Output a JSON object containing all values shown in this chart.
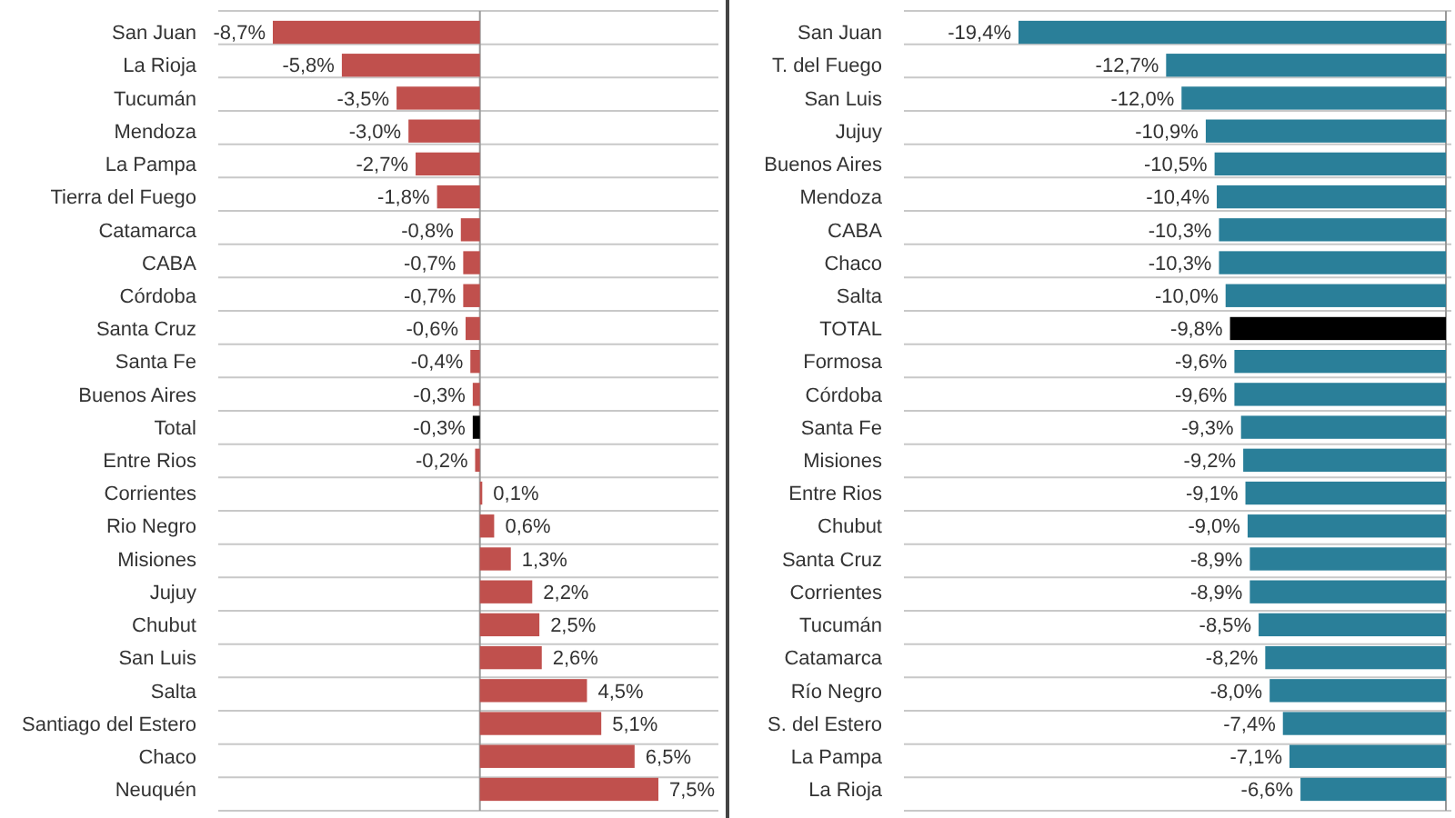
{
  "chart_data": [
    {
      "type": "bar",
      "orientation": "horizontal",
      "grid": "y",
      "categories": [
        "San Juan",
        "La Rioja",
        "Tucumán",
        "Mendoza",
        "La Pampa",
        "Tierra del Fuego",
        "Catamarca",
        "CABA",
        "Córdoba",
        "Santa Cruz",
        "Santa Fe",
        "Buenos Aires",
        "Total",
        "Entre Rios",
        "Corrientes",
        "Rio Negro",
        "Misiones",
        "Jujuy",
        "Chubut",
        "San Luis",
        "Salta",
        "Santiago del Estero",
        "Chaco",
        "Neuquén"
      ],
      "values": [
        -8.7,
        -5.8,
        -3.5,
        -3.0,
        -2.7,
        -1.8,
        -0.8,
        -0.7,
        -0.7,
        -0.6,
        -0.4,
        -0.3,
        -0.3,
        -0.2,
        0.1,
        0.6,
        1.3,
        2.2,
        2.5,
        2.6,
        4.5,
        5.1,
        6.5,
        7.5
      ],
      "colors": [
        "#c0504d",
        "#c0504d",
        "#c0504d",
        "#c0504d",
        "#c0504d",
        "#c0504d",
        "#c0504d",
        "#c0504d",
        "#c0504d",
        "#c0504d",
        "#c0504d",
        "#c0504d",
        "#000000",
        "#c0504d",
        "#c0504d",
        "#c0504d",
        "#c0504d",
        "#c0504d",
        "#c0504d",
        "#c0504d",
        "#c0504d",
        "#c0504d",
        "#c0504d",
        "#c0504d"
      ],
      "value_labels": [
        "-8,7%",
        "-5,8%",
        "-3,5%",
        "-3,0%",
        "-2,7%",
        "-1,8%",
        "-0,8%",
        "-0,7%",
        "-0,7%",
        "-0,6%",
        "-0,4%",
        "-0,3%",
        "-0,3%",
        "-0,2%",
        "0,1%",
        "0,6%",
        "1,3%",
        "2,2%",
        "2,5%",
        "2,6%",
        "4,5%",
        "5,1%",
        "6,5%",
        "7,5%"
      ]
    },
    {
      "type": "bar",
      "orientation": "horizontal",
      "grid": "y",
      "categories": [
        "San Juan",
        "T. del Fuego",
        "San Luis",
        "Jujuy",
        "Buenos Aires",
        "Mendoza",
        "CABA",
        "Chaco",
        "Salta",
        "TOTAL",
        "Formosa",
        "Córdoba",
        "Santa Fe",
        "Misiones",
        "Entre Rios",
        "Chubut",
        "Santa Cruz",
        "Corrientes",
        "Tucumán",
        "Catamarca",
        "Río Negro",
        "S. del Estero",
        "La Pampa",
        "La Rioja"
      ],
      "values": [
        -19.4,
        -12.7,
        -12.0,
        -10.9,
        -10.5,
        -10.4,
        -10.3,
        -10.3,
        -10.0,
        -9.8,
        -9.6,
        -9.6,
        -9.3,
        -9.2,
        -9.1,
        -9.0,
        -8.9,
        -8.9,
        -8.5,
        -8.2,
        -8.0,
        -7.4,
        -7.1,
        -6.6
      ],
      "colors": [
        "#2a7f99",
        "#2a7f99",
        "#2a7f99",
        "#2a7f99",
        "#2a7f99",
        "#2a7f99",
        "#2a7f99",
        "#2a7f99",
        "#2a7f99",
        "#000000",
        "#2a7f99",
        "#2a7f99",
        "#2a7f99",
        "#2a7f99",
        "#2a7f99",
        "#2a7f99",
        "#2a7f99",
        "#2a7f99",
        "#2a7f99",
        "#2a7f99",
        "#2a7f99",
        "#2a7f99",
        "#2a7f99",
        "#2a7f99"
      ],
      "value_labels": [
        "-19,4%",
        "-12,7%",
        "-12,0%",
        "-10,9%",
        "-10,5%",
        "-10,4%",
        "-10,3%",
        "-10,3%",
        "-10,0%",
        "-9,8%",
        "-9,6%",
        "-9,6%",
        "-9,3%",
        "-9,2%",
        "-9,1%",
        "-9,0%",
        "-8,9%",
        "-8,9%",
        "-8,5%",
        "-8,2%",
        "-8,0%",
        "-7,4%",
        "-7,1%",
        "-6,6%"
      ]
    }
  ]
}
